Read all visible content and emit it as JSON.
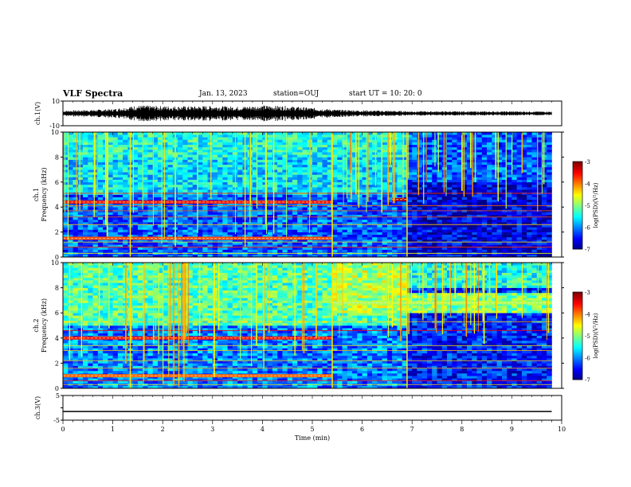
{
  "header": {
    "title": "VLF Spectra",
    "date": "Jan. 13, 2023",
    "station": "station=OUJ",
    "start": "start  UT =   10: 20: 0"
  },
  "chart_data": [
    {
      "id": "ch1-waveform",
      "type": "line",
      "ylabel": "ch.1(V)",
      "ylim": [
        -10,
        10
      ],
      "yticks": [
        10,
        -10
      ],
      "x": [
        0,
        0.5,
        1,
        1.5,
        2,
        2.5,
        3,
        3.5,
        4,
        4.5,
        5,
        5.5,
        6,
        6.5,
        7,
        7.5,
        8,
        8.5,
        9,
        9.5,
        9.8
      ],
      "amplitude_envelope": [
        2.2,
        2.8,
        3.5,
        6.5,
        6.0,
        5.8,
        6.2,
        5.5,
        6.5,
        6.0,
        4.5,
        3.0,
        2.5,
        2.2,
        1.8,
        1.7,
        1.7,
        1.6,
        1.7,
        1.6,
        1.6
      ],
      "xlim": [
        0,
        10
      ]
    },
    {
      "id": "ch1-spectrogram",
      "type": "heatmap",
      "ylabel": "Frequency (kHz)",
      "channel_label": "ch.1",
      "ylim": [
        0,
        10
      ],
      "yticks": [
        0,
        2,
        4,
        6,
        8,
        10
      ],
      "xlim": [
        0,
        10
      ],
      "colorbar": {
        "label": "log(PSD)(V²/Hz)",
        "ticks": [
          -3,
          -4,
          -5,
          -6,
          -7
        ],
        "range": [
          -7,
          -3
        ]
      },
      "bands": [
        {
          "kHz": 4.4,
          "x": [
            0,
            5.4
          ],
          "log_psd": -3.6
        },
        {
          "kHz": 1.5,
          "x": [
            0,
            5.4
          ],
          "log_psd": -3.8
        },
        {
          "kHz": 4.6,
          "x": [
            6.6,
            6.9
          ],
          "log_psd": -3.2
        }
      ],
      "segment_breaks_min": [
        1.35,
        5.4,
        6.9
      ]
    },
    {
      "id": "ch2-spectrogram",
      "type": "heatmap",
      "ylabel": "Frequency (kHz)",
      "channel_label": "ch.2",
      "ylim": [
        0,
        10
      ],
      "yticks": [
        0,
        2,
        4,
        6,
        8,
        10
      ],
      "xlim": [
        0,
        10
      ],
      "colorbar": {
        "label": "log(PSD)(V²/Hz)",
        "ticks": [
          -3,
          -4,
          -5,
          -6,
          -7
        ],
        "range": [
          -7,
          -3
        ]
      },
      "bands": [
        {
          "kHz": 4.0,
          "x": [
            0,
            5.4
          ],
          "log_psd": -3.6
        },
        {
          "kHz": 1.0,
          "x": [
            0,
            5.4
          ],
          "log_psd": -3.9
        },
        {
          "kHz": 6.8,
          "x": [
            5.4,
            9.8
          ],
          "log_psd": -4.8
        }
      ],
      "segment_breaks_min": [
        1.35,
        5.4,
        6.9
      ]
    },
    {
      "id": "ch3-line",
      "type": "line",
      "ylabel": "ch.3(V)",
      "ylim": [
        -5,
        5
      ],
      "yticks": [
        5,
        0,
        -5
      ],
      "x": [
        0,
        9.8
      ],
      "y": [
        -1.5,
        -1.5
      ],
      "xlim": [
        0,
        10
      ],
      "xlabel": "Time (min)",
      "xticks": [
        0,
        1,
        2,
        3,
        4,
        5,
        6,
        7,
        8,
        9,
        10
      ]
    }
  ]
}
